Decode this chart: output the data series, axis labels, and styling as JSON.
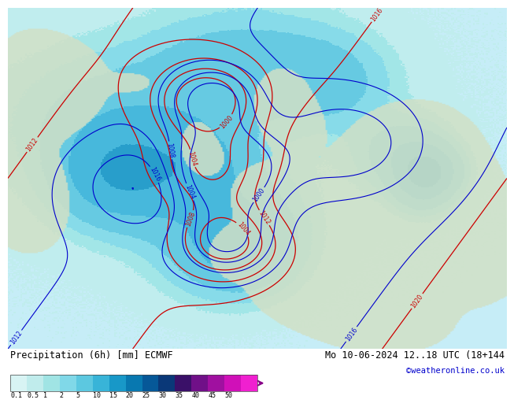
{
  "title_left": "Precipitation (6h) [mm] ECMWF",
  "title_right": "Mo 10-06-2024 12..18 UTC (18+144",
  "credit": "©weatheronline.co.uk",
  "colorbar_labels": [
    "0.1",
    "0.5",
    "1",
    "2",
    "5",
    "10",
    "15",
    "20",
    "25",
    "30",
    "35",
    "40",
    "45",
    "50"
  ],
  "colorbar_colors": [
    "#d8f4f4",
    "#c0ecec",
    "#a0e4e4",
    "#80d8e8",
    "#5cc8e0",
    "#38b4d8",
    "#1898c8",
    "#0878b0",
    "#065898",
    "#0a3878",
    "#3a1068",
    "#701088",
    "#a010a0",
    "#d010b8",
    "#f020d0"
  ],
  "map_sea_color": "#c8eef8",
  "map_land_color": "#e8f4e8",
  "land_gray": "#d0ccc8",
  "fig_bg": "#ffffff",
  "font_color": "#000000",
  "credit_color": "#0000cc",
  "red_contour_color": "#cc0000",
  "blue_contour_color": "#0000cc",
  "title_fontsize": 8.5,
  "credit_fontsize": 7.5,
  "label_fontsize": 5.5
}
